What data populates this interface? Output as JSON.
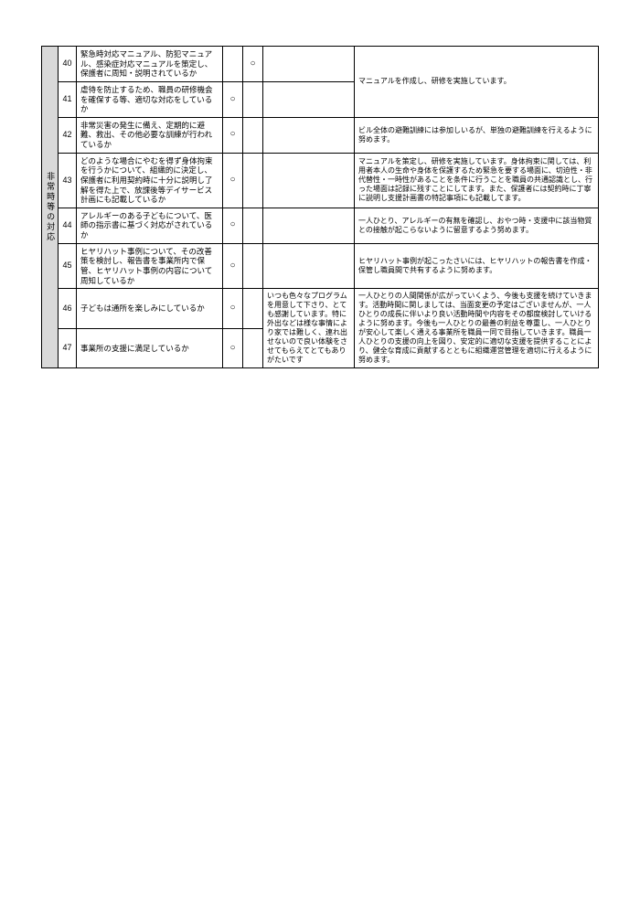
{
  "table": {
    "section_label": "非常時等の対応",
    "background_header": "#d9d9d9",
    "circle_mark": "○",
    "rows": [
      {
        "num": "40",
        "question": "緊急時対応マニュアル、防犯マニュアル、感染症対応マニュアルを策定し、保護者に周知・説明されているか",
        "mark1": "",
        "mark2": "○",
        "comment": "",
        "response": "マニュアルを作成し、研修を実施しています。",
        "response_rowspan": 2
      },
      {
        "num": "41",
        "question": "虐待を防止するため、職員の研修機会を確保する等、適切な対応をしているか",
        "mark1": "○",
        "mark2": "",
        "comment": ""
      },
      {
        "num": "42",
        "question": "非常災害の発生に備え、定期的に避難、救出、その他必要な訓練が行われているか",
        "mark1": "○",
        "mark2": "",
        "comment": "",
        "response": "ビル全体の避難訓練には参加しいるが、単独の避難訓練を行えるように努めます。"
      },
      {
        "num": "43",
        "question": "どのような場合にやむを得ず身体拘束を行うかについて、組織的に決定し、保護者に利用契約時に十分に説明し了解を得た上で、放課後等デイサービス計画にも記載しているか",
        "mark1": "○",
        "mark2": "",
        "comment": "",
        "response": "マニュアルを策定し、研修を実施しています。身体拘束に関しては、利用者本人の生命や身体を保護するため緊急を要する場面に、切迫性・非代替性・一時性があることを条件に行うことを職員の共通認識とし、行った場面は記録に残すことにしてます。また、保護者には契約時に丁寧に説明し支援計画書の特記事項にも記載してます。"
      },
      {
        "num": "44",
        "question": "アレルギーのある子どもについて、医師の指示書に基づく対応がされているか",
        "mark1": "○",
        "mark2": "",
        "comment": "",
        "response": "一人ひとり、アレルギーの有無を確認し、おやつ時・支援中に該当物質との接触が起こらないように留意するよう努めます。"
      },
      {
        "num": "45",
        "question": "ヒヤリハット事例について、その改善策を検討し、報告書を事業所内で保管、ヒヤリハット事例の内容について周知しているか",
        "mark1": "○",
        "mark2": "",
        "comment": "",
        "response": "ヒヤリハット事例が起こったさいには、ヒヤリハットの報告書を作成・保管し職員間で共有するように努めます。"
      },
      {
        "num": "46",
        "question": "子どもは通所を楽しみにしているか",
        "mark1": "○",
        "mark2": "",
        "comment": "いつも色々なプログラムを用意して下さり、とても感謝しています。特に外出などは様な事情により家では難しく、連れ出せないので良い体験をさせてもらえてとてもありがたいです",
        "comment_rowspan": 2,
        "response": "一人ひとりの人間関係が広がっていくよう、今後も支援を続けていきます。活動時間に関しましては、当面変更の予定はございませんが、一人ひとりの成長に伴いより良い活動時間や内容をその都度検討していけるように努めます。今後も一人ひとりの最善の利益を尊重し、一人ひとりが安心して楽しく通える事業所を職員一同で目指していきます。職員一人ひとりの支援の向上を図り、安定的に適切な支援を提供することにより、健全な育成に貢献するとともに組織運営管理を適切に行えるように努めます。",
        "response_rowspan": 2
      },
      {
        "num": "47",
        "question": "事業所の支援に満足しているか",
        "mark1": "○",
        "mark2": ""
      }
    ]
  }
}
